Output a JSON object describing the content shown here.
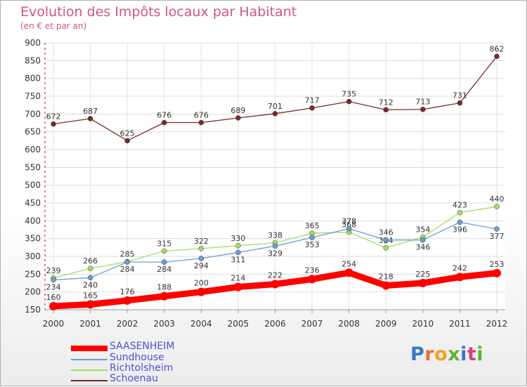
{
  "title": "Evolution des Impôts locaux par Habitant",
  "subtitle": "(en € et par an)",
  "logo_text": "Proxiti",
  "chart_data": {
    "type": "line",
    "x": [
      "2000",
      "2001",
      "2002",
      "2003",
      "2004",
      "2005",
      "2006",
      "2007",
      "2008",
      "2009",
      "2010",
      "2011",
      "2012"
    ],
    "ylim": [
      150,
      900
    ],
    "yticks": [
      150,
      200,
      250,
      300,
      350,
      400,
      450,
      500,
      550,
      600,
      650,
      700,
      750,
      800,
      850,
      900
    ],
    "grid": true,
    "legend_position": "bottom",
    "series": [
      {
        "name": "SAASENHEIM",
        "color": "#ff0000",
        "values": [
          160,
          165,
          176,
          188,
          200,
          214,
          222,
          236,
          254,
          218,
          225,
          242,
          253
        ]
      },
      {
        "name": "Sundhouse",
        "color": "#6a9fd0",
        "values": [
          234,
          240,
          284,
          284,
          294,
          311,
          329,
          353,
          378,
          346,
          346,
          396,
          377
        ]
      },
      {
        "name": "Richtolsheim",
        "color": "#9fe060",
        "values": [
          239,
          266,
          285,
          315,
          322,
          330,
          338,
          365,
          368,
          324,
          354,
          423,
          440
        ]
      },
      {
        "name": "Schoenau",
        "color": "#7a2a2a",
        "values": [
          672,
          687,
          625,
          676,
          676,
          689,
          701,
          717,
          735,
          712,
          713,
          731,
          862
        ]
      }
    ]
  }
}
